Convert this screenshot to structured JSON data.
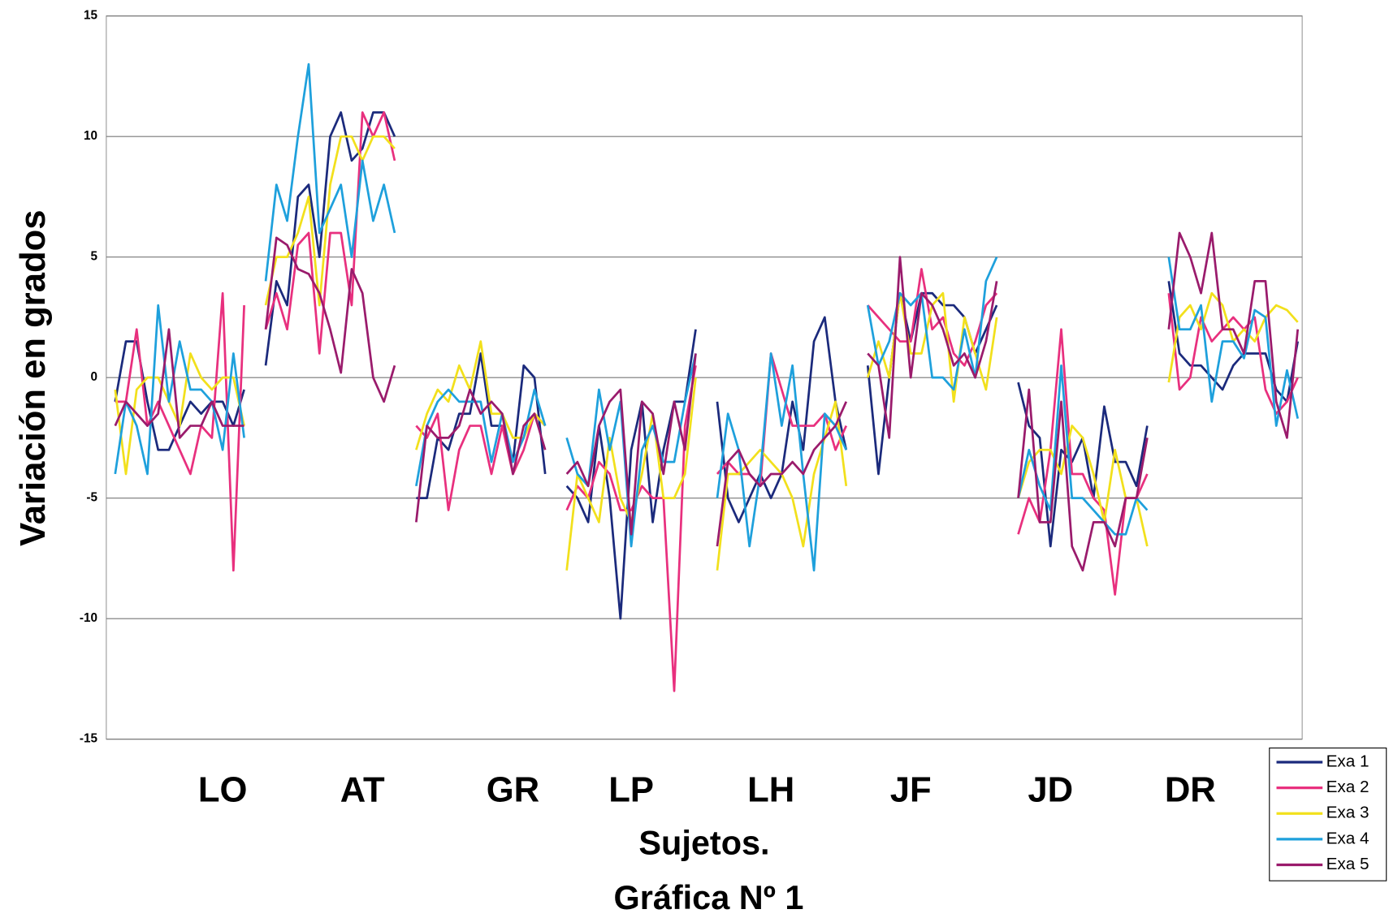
{
  "chart_data": {
    "type": "line",
    "x_label": "Sujetos.",
    "caption": "Gráfica Nº 1",
    "y_label": "Variación en grados",
    "ylim": [
      -15,
      15
    ],
    "yticks": [
      -15,
      -10,
      -5,
      0,
      5,
      10,
      15
    ],
    "grid": true,
    "legend": "bottom-right",
    "categories": [
      null,
      null,
      null,
      null,
      null,
      null,
      null,
      null,
      null,
      null,
      "LO",
      null,
      null,
      null,
      null,
      null,
      null,
      null,
      null,
      null,
      null,
      null,
      null,
      "AT",
      null,
      null,
      null,
      null,
      null,
      null,
      null,
      null,
      null,
      null,
      null,
      null,
      null,
      "GR",
      null,
      null,
      null,
      null,
      null,
      null,
      null,
      null,
      null,
      null,
      "LP",
      null,
      null,
      null,
      null,
      null,
      null,
      null,
      null,
      null,
      null,
      null,
      null,
      "LH",
      null,
      null,
      null,
      null,
      null,
      null,
      null,
      null,
      null,
      null,
      null,
      null,
      "JF",
      null,
      null,
      null,
      null,
      null,
      null,
      null,
      null,
      null,
      null,
      null,
      null,
      "JD",
      null,
      null,
      null,
      null,
      null,
      null,
      null,
      null,
      null,
      null,
      null,
      null,
      "DR",
      null,
      null,
      null,
      null,
      null,
      null,
      null,
      null,
      null,
      null
    ],
    "series": [
      {
        "name": "Exa 1",
        "color": "#1b2a7c",
        "values": [
          -1,
          1.5,
          1.5,
          -1,
          -3,
          -3,
          -2,
          -1,
          -1.5,
          -1,
          -1,
          -2,
          -0.5,
          null,
          0.5,
          4,
          3,
          7.5,
          8,
          5,
          10,
          11,
          9,
          9.5,
          11,
          11,
          10,
          null,
          -5,
          -5,
          -2.5,
          -3,
          -1.5,
          -1.5,
          1,
          -2,
          -2,
          -3.5,
          0.5,
          0,
          -4,
          null,
          -4.5,
          -5,
          -6,
          -2,
          -5,
          -10,
          -3,
          -1,
          -6,
          -3,
          -1,
          -1,
          2,
          null,
          -1,
          -5,
          -6,
          -5,
          -4,
          -5,
          -4,
          -1,
          -3,
          1.5,
          2.5,
          -1,
          -3,
          null,
          0.5,
          -4,
          0,
          3.5,
          1.5,
          3.5,
          3.5,
          3,
          3,
          2.5,
          1,
          2,
          3,
          null,
          -0.2,
          -2,
          -2.5,
          -7,
          -3,
          -3.5,
          -2.5,
          -5,
          -1.2,
          -3.5,
          -3.5,
          -4.5,
          -2,
          null,
          4,
          1,
          0.5,
          0.5,
          0,
          -0.5,
          0.5,
          1,
          1,
          1,
          -0.5,
          -1,
          1.5
        ]
      },
      {
        "name": "Exa 2",
        "color": "#e8307e",
        "values": [
          -1,
          -1,
          2,
          -2,
          -1,
          -2,
          -3,
          -4,
          -2,
          -2.5,
          3.5,
          -8,
          3,
          null,
          2,
          3.5,
          2,
          5.5,
          6,
          1,
          6,
          6,
          3,
          11,
          10,
          11,
          9,
          null,
          -2,
          -2.5,
          -1.5,
          -5.5,
          -3,
          -2,
          -2,
          -4,
          -2,
          -4,
          -3,
          -1.5,
          -2,
          null,
          -5.5,
          -4.5,
          -5,
          -3.5,
          -4,
          -5.5,
          -5.5,
          -4.5,
          -5,
          -5,
          -13,
          -2,
          0.5,
          null,
          -4,
          -3.5,
          -4,
          -4,
          -4.5,
          1,
          -0.5,
          -2,
          -2,
          -2,
          -1.5,
          -3,
          -2,
          null,
          3,
          2.5,
          2,
          1.5,
          1.5,
          4.5,
          2,
          2.5,
          1,
          0.5,
          1.5,
          3,
          3.5,
          null,
          -6.5,
          -5,
          -6,
          -3,
          2,
          -4,
          -4,
          -5,
          -5.5,
          -9,
          -5,
          -5,
          -4,
          null,
          3.5,
          -0.5,
          0,
          2.5,
          1.5,
          2,
          2.5,
          2,
          2.5,
          -0.5,
          -1.5,
          -1,
          0
        ]
      },
      {
        "name": "Exa 3",
        "color": "#f2e01c",
        "values": [
          -0.5,
          -4,
          -0.5,
          0,
          0,
          -1,
          -2,
          1,
          0,
          -0.5,
          0,
          0,
          -2,
          null,
          3,
          5,
          5,
          6,
          7.5,
          3,
          8,
          10,
          10,
          9,
          10,
          10,
          9.5,
          null,
          -3,
          -1.5,
          -0.5,
          -1,
          0.5,
          -0.5,
          1.5,
          -1.5,
          -1.5,
          -2.5,
          -2.5,
          -1.5,
          -2,
          null,
          -8,
          -4,
          -5,
          -6,
          -2.5,
          -5,
          -6,
          -4,
          -1.5,
          -5,
          -5,
          -4,
          0,
          null,
          -8,
          -4,
          -4,
          -3.5,
          -3,
          -3.5,
          -4,
          -5,
          -7,
          -4,
          -2.5,
          -1,
          -4.5,
          null,
          0,
          1.5,
          0,
          3.5,
          1,
          1,
          3,
          3.5,
          -1,
          2.5,
          1,
          -0.5,
          2.5,
          null,
          -5,
          -3.5,
          -3,
          -3,
          -4,
          -2,
          -2.5,
          -4,
          -6,
          -3,
          -5,
          -5,
          -7,
          null,
          -0.2,
          2.5,
          3,
          2,
          3.5,
          3,
          1.5,
          2,
          1.5,
          2.5,
          3,
          2.8,
          2.3
        ]
      },
      {
        "name": "Exa 4",
        "color": "#1ea0dc",
        "values": [
          -4,
          -1,
          -2,
          -4,
          3,
          -1,
          1.5,
          -0.5,
          -0.5,
          -1,
          -3,
          1,
          -2.5,
          null,
          4,
          8,
          6.5,
          10,
          13,
          6,
          7,
          8,
          5,
          9,
          6.5,
          8,
          6,
          null,
          -4.5,
          -2,
          -1,
          -0.5,
          -1,
          -1,
          -1,
          -3.5,
          -1.5,
          -3.5,
          -2.5,
          -0.5,
          -2,
          null,
          -2.5,
          -4,
          -4.5,
          -0.5,
          -3,
          -1,
          -7,
          -3,
          -2,
          -3.5,
          -3.5,
          -1,
          1,
          null,
          -5,
          -1.5,
          -3,
          -7,
          -4,
          1,
          -2,
          0.5,
          -4,
          -8,
          -1.5,
          -2,
          -3,
          null,
          3,
          0.5,
          1.5,
          3.5,
          3,
          3.5,
          0,
          0,
          -0.5,
          2,
          0,
          4,
          5,
          null,
          -5,
          -3,
          -4.5,
          -5.5,
          0.5,
          -5,
          -5,
          -5.5,
          -6,
          -6.5,
          -6.5,
          -5,
          -5.5,
          null,
          5,
          2,
          2,
          3,
          -1,
          1.5,
          1.5,
          0.8,
          2.8,
          2.5,
          -2,
          0.3,
          -1.7
        ]
      },
      {
        "name": "Exa 5",
        "color": "#9a1b6c",
        "values": [
          -2,
          -1,
          -1.5,
          -2,
          -1.5,
          2,
          -2.5,
          -2,
          -2,
          -1,
          -2,
          -2,
          -2,
          null,
          2,
          5.8,
          5.5,
          4.5,
          4.3,
          3.5,
          2,
          0.2,
          4.5,
          3.5,
          0,
          -1,
          0.5,
          null,
          -6,
          -2,
          -2.5,
          -2.5,
          -2,
          -0.5,
          -1.5,
          -1,
          -1.5,
          -4,
          -2,
          -1.5,
          -3,
          null,
          -4,
          -3.5,
          -4.5,
          -2,
          -1,
          -0.5,
          -6.5,
          -1,
          -1.5,
          -4,
          -1,
          -3,
          1,
          null,
          -7,
          -3.5,
          -3,
          -4,
          -4.5,
          -4,
          -4,
          -3.5,
          -4,
          -3,
          -2.5,
          -2,
          -1,
          null,
          1,
          0.5,
          -2.5,
          5,
          0,
          3.5,
          3,
          2,
          0.5,
          1,
          0,
          1.5,
          4,
          null,
          -5,
          -0.5,
          -6,
          -6,
          -1,
          -7,
          -8,
          -6,
          -6,
          -7,
          -5,
          -5,
          -2.5,
          null,
          2,
          6,
          5,
          3.5,
          6,
          2,
          2,
          1,
          4,
          4,
          -1,
          -2.5,
          2
        ]
      }
    ]
  }
}
